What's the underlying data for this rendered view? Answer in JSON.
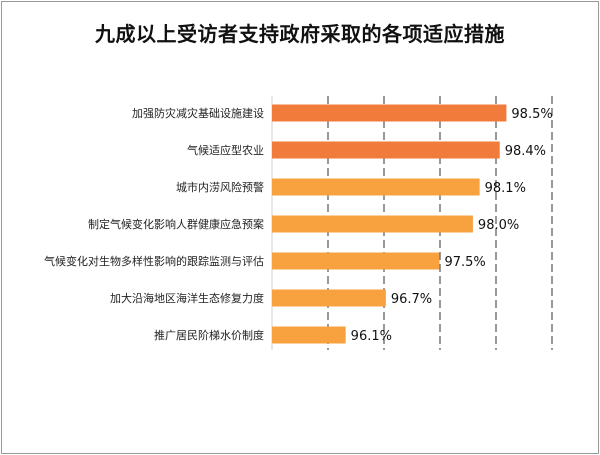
{
  "chart_data": {
    "type": "bar",
    "orientation": "horizontal",
    "title": "九成以上受访者支持政府采取的各项适应措施",
    "categories": [
      "加强防灾减灾基础设施建设",
      "气候适应型农业",
      "城市内涝风险预警",
      "制定气候变化影响人群健康应急预案",
      "气候变化对生物多样性影响的跟踪监测与评估",
      "加大沿海地区海洋生态修复力度",
      "推广居民阶梯水价制度"
    ],
    "values": [
      98.5,
      98.4,
      98.1,
      98.0,
      97.5,
      96.7,
      96.1
    ],
    "value_labels": [
      "98.5%",
      "98.4%",
      "98.1%",
      "98.0%",
      "97.5%",
      "96.7%",
      "96.1%"
    ],
    "xlim": [
      95.0,
      99.3
    ],
    "grid": "vertical-dashed",
    "xlabel": "",
    "ylabel": "",
    "colors": {
      "highlight": "#f07b3a",
      "normal": "#f8a23f",
      "grid": "#555555"
    },
    "highlight_count": 2
  }
}
